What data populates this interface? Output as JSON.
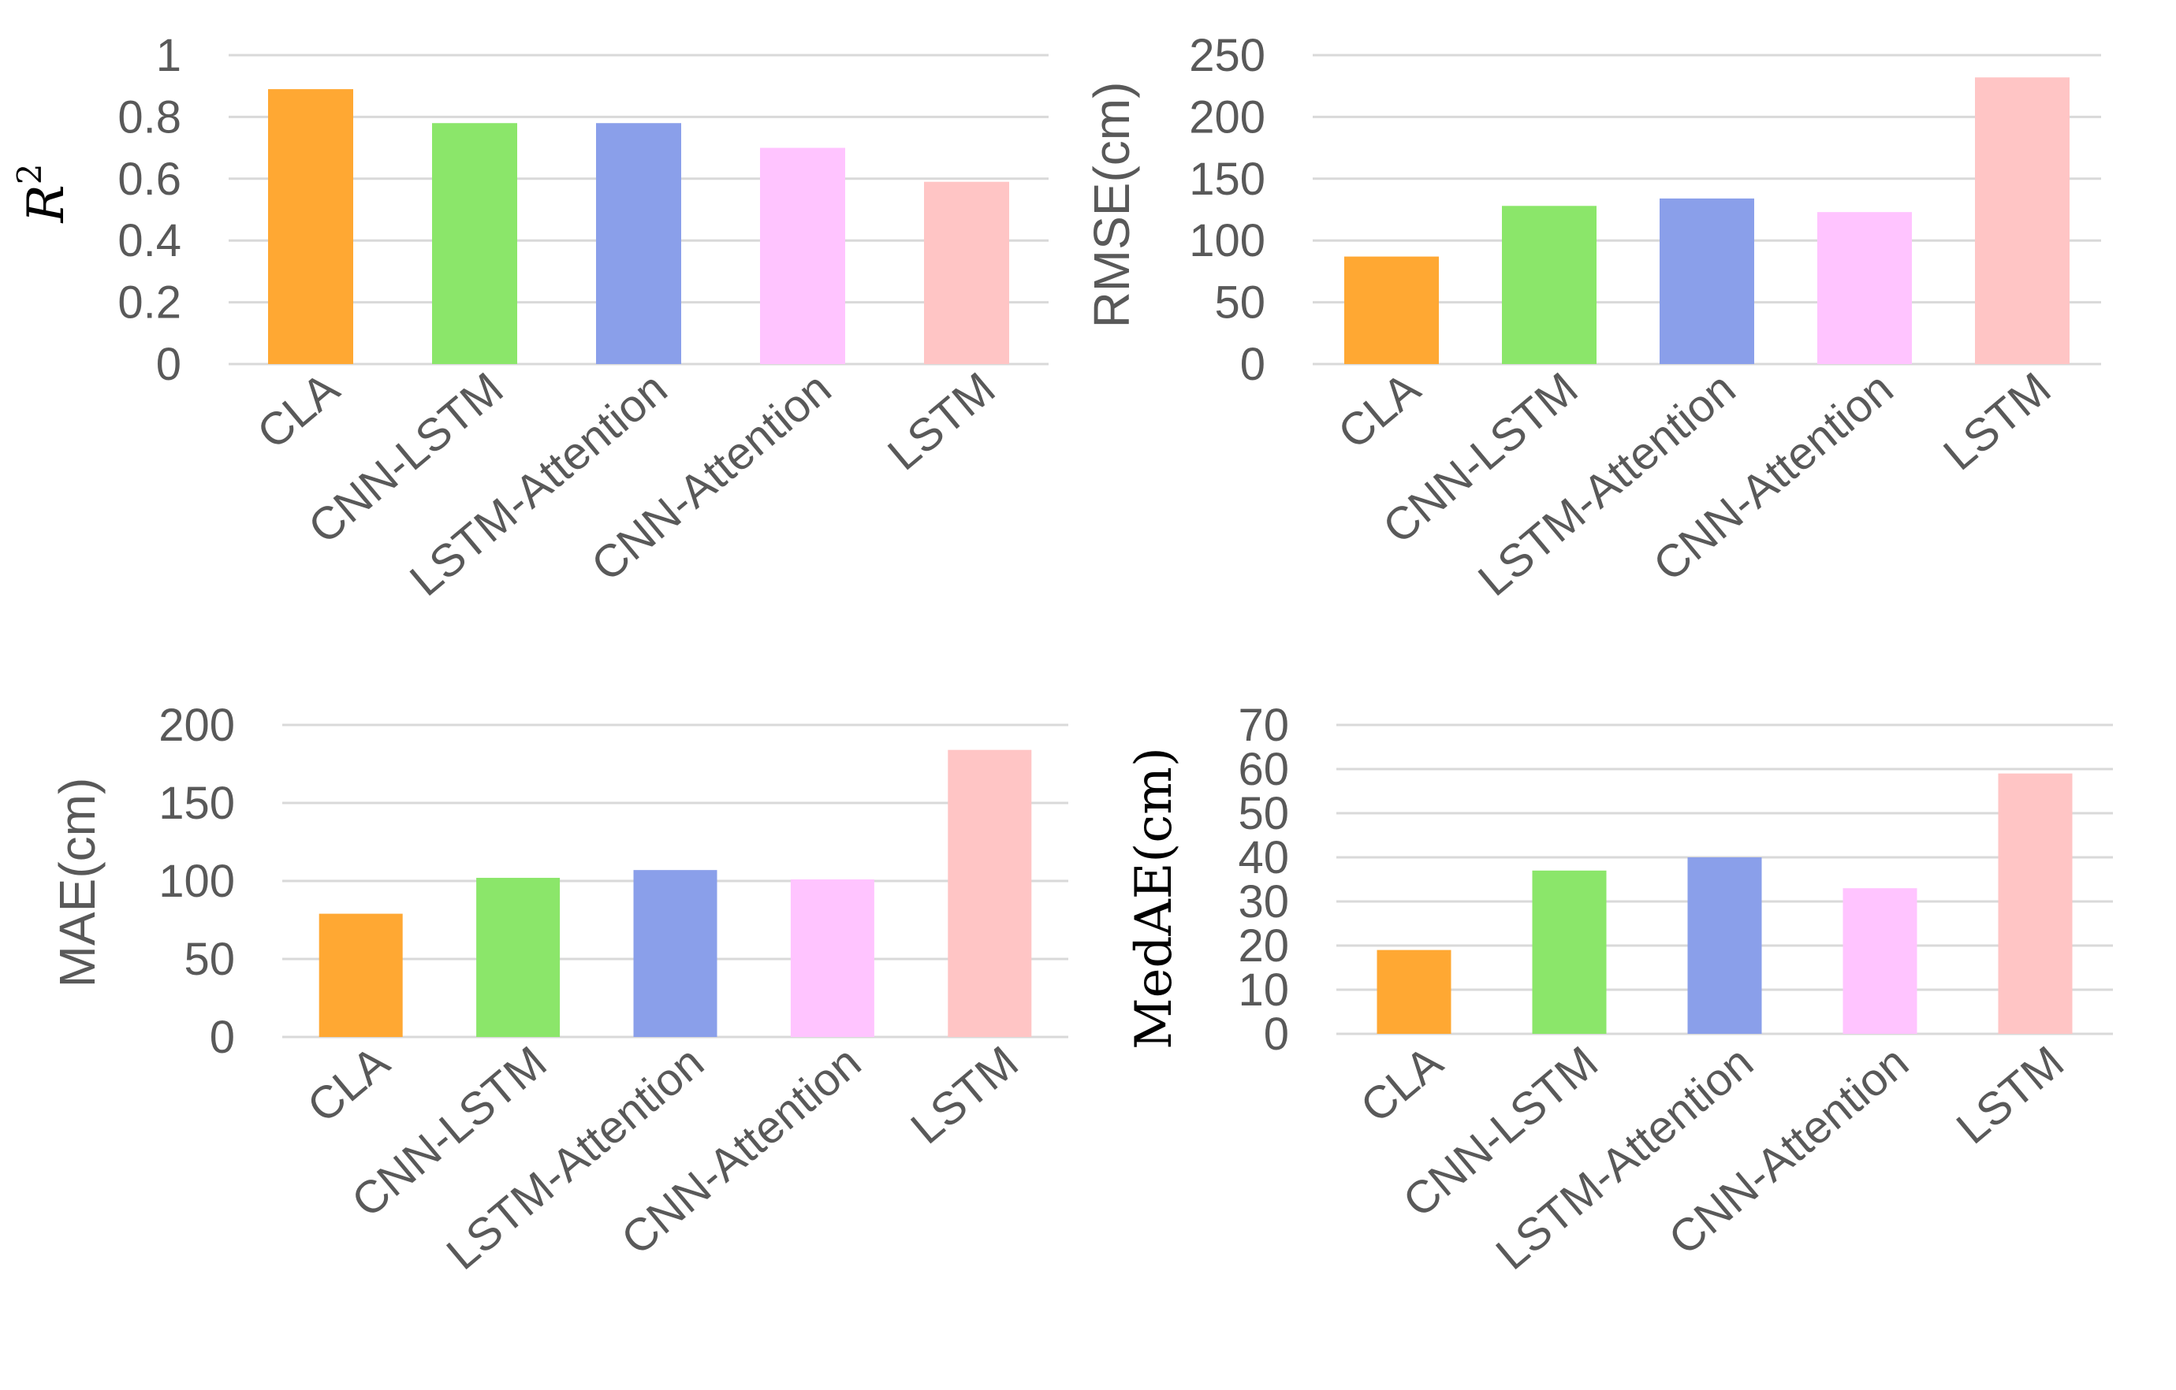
{
  "colors": {
    "CLA": "#FFA833",
    "CNN-LSTM": "#8BE66A",
    "LSTM-Attention": "#8A9FEA",
    "CNN-Attention": "#FFC4FF",
    "LSTM": "#FFC5C5",
    "tick_text": "#595959",
    "grid": "#d9d9d9"
  },
  "chart_data": [
    {
      "type": "bar",
      "title": "",
      "xlabel": "",
      "ylabel": "R",
      "ylabel_sup": "2",
      "categories": [
        "CLA",
        "CNN-LSTM",
        "LSTM-Attention",
        "CNN-Attention",
        "LSTM"
      ],
      "values": [
        0.89,
        0.78,
        0.78,
        0.7,
        0.59
      ],
      "ylim": [
        0,
        1
      ],
      "yticks": [
        "0",
        "0.2",
        "0.4",
        "0.6",
        "0.8",
        "1"
      ],
      "ytick_values": [
        0,
        0.2,
        0.4,
        0.6,
        0.8,
        1
      ],
      "grid": true,
      "legend": "none"
    },
    {
      "type": "bar",
      "title": "",
      "xlabel": "",
      "ylabel": "RMSE(cm)",
      "categories": [
        "CLA",
        "CNN-LSTM",
        "LSTM-Attention",
        "CNN-Attention",
        "LSTM"
      ],
      "values": [
        87,
        128,
        134,
        123,
        232
      ],
      "ylim": [
        0,
        250
      ],
      "yticks": [
        "0",
        "50",
        "100",
        "150",
        "200",
        "250"
      ],
      "ytick_values": [
        0,
        50,
        100,
        150,
        200,
        250
      ],
      "grid": true,
      "legend": "none"
    },
    {
      "type": "bar",
      "title": "",
      "xlabel": "",
      "ylabel": "MAE(cm)",
      "categories": [
        "CLA",
        "CNN-LSTM",
        "LSTM-Attention",
        "CNN-Attention",
        "LSTM"
      ],
      "values": [
        79,
        102,
        107,
        101,
        184
      ],
      "ylim": [
        0,
        200
      ],
      "yticks": [
        "0",
        "50",
        "100",
        "150",
        "200"
      ],
      "ytick_values": [
        0,
        50,
        100,
        150,
        200
      ],
      "grid": true,
      "legend": "none"
    },
    {
      "type": "bar",
      "title": "",
      "xlabel": "",
      "ylabel": "MedAE(cm)",
      "categories": [
        "CLA",
        "CNN-LSTM",
        "LSTM-Attention",
        "CNN-Attention",
        "LSTM"
      ],
      "values": [
        19,
        37,
        40,
        33,
        59
      ],
      "ylim": [
        0,
        70
      ],
      "yticks": [
        "0",
        "10",
        "20",
        "30",
        "40",
        "50",
        "60",
        "70"
      ],
      "ytick_values": [
        0,
        10,
        20,
        30,
        40,
        50,
        60,
        70
      ],
      "grid": true,
      "legend": "none"
    }
  ]
}
